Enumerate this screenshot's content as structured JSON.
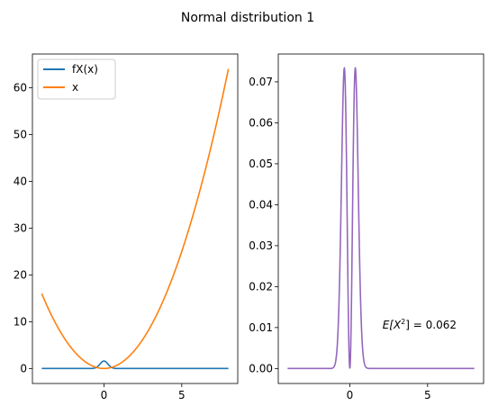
{
  "suptitle": "Normal distribution 1",
  "chart_data": [
    {
      "type": "line",
      "panel": "left",
      "xlim": [
        -4.6,
        8.6
      ],
      "ylim": [
        -3.2,
        67.2
      ],
      "xticks": [
        0,
        5
      ],
      "yticks": [
        0,
        10,
        20,
        30,
        40,
        50,
        60
      ],
      "legend_placement": "upper-left",
      "grid": false,
      "series": [
        {
          "name": "fX(x)",
          "color": "#1f77b4",
          "function": "normal_pdf",
          "mean": 0,
          "sd": 0.25,
          "domain": [
            -4,
            8
          ]
        },
        {
          "name": "x",
          "color": "#ff7f0e",
          "function": "x_squared",
          "domain": [
            -4,
            8
          ]
        }
      ]
    },
    {
      "type": "line",
      "panel": "right",
      "xlim": [
        -4.6,
        8.6
      ],
      "ylim": [
        -0.00366,
        0.0768
      ],
      "xticks": [
        0,
        5
      ],
      "yticks": [
        0.0,
        0.01,
        0.02,
        0.03,
        0.04,
        0.05,
        0.06,
        0.07
      ],
      "yticklabels": [
        "0.00",
        "0.01",
        "0.02",
        "0.03",
        "0.04",
        "0.05",
        "0.06",
        "0.07"
      ],
      "grid": false,
      "series": [
        {
          "color": "#9467bd",
          "function": "x_squared_times_normal_pdf",
          "mean": 0,
          "sd": 0.25,
          "domain": [
            -4,
            8
          ]
        }
      ],
      "annotation": {
        "prefix": "E[X",
        "sup": "2",
        "suffix": "] = 0.062",
        "x": 2.1,
        "y": 0.0097
      }
    }
  ]
}
